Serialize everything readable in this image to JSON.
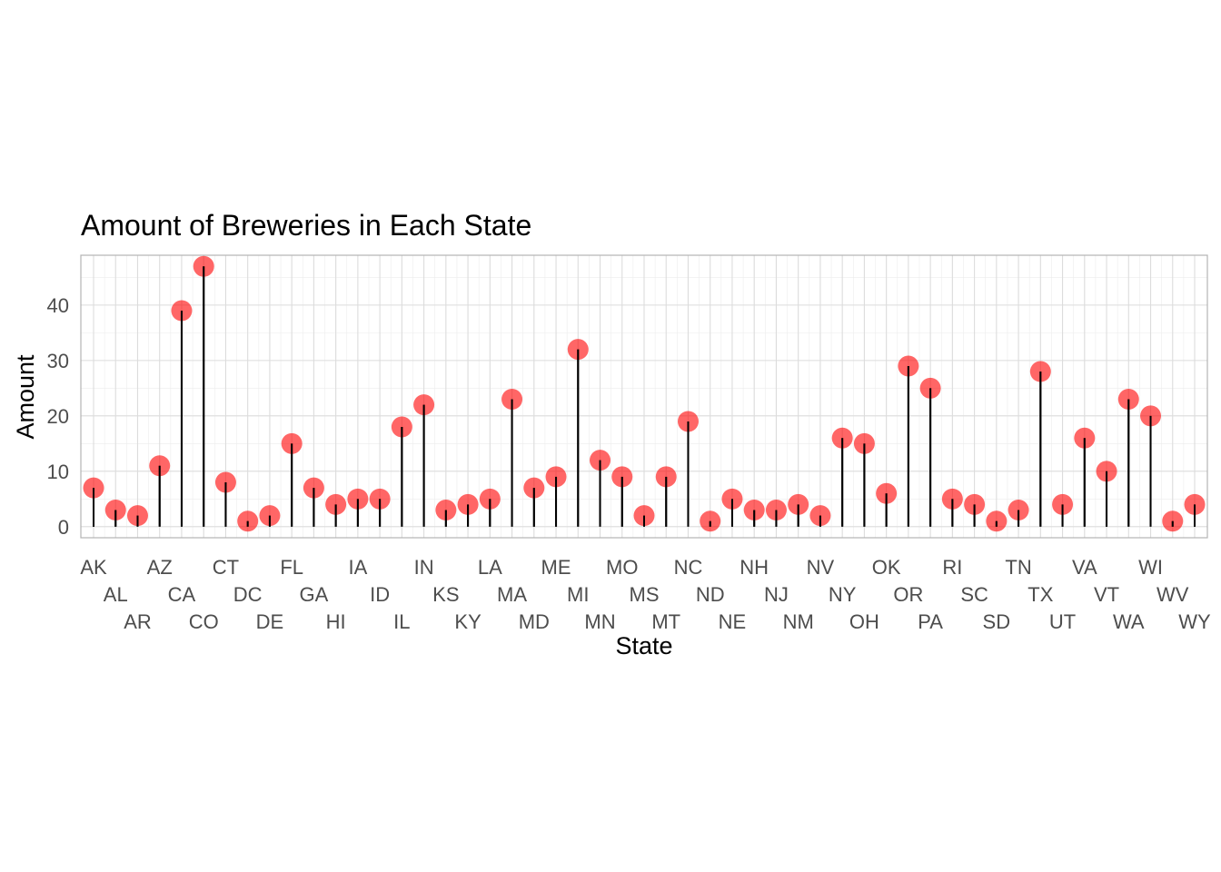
{
  "chart_data": {
    "type": "lollipop",
    "title": "Amount of Breweries in Each State",
    "xlabel": "State",
    "ylabel": "Amount",
    "ylim": [
      -2,
      49
    ],
    "yticks": [
      0,
      10,
      20,
      30,
      40
    ],
    "grid": true,
    "point_color": "#ff0000",
    "stem_color": "#000000",
    "categories": [
      "AK",
      "AL",
      "AR",
      "AZ",
      "CA",
      "CO",
      "CT",
      "DC",
      "DE",
      "FL",
      "GA",
      "HI",
      "IA",
      "ID",
      "IL",
      "IN",
      "KS",
      "KY",
      "LA",
      "MA",
      "MD",
      "ME",
      "MI",
      "MN",
      "MO",
      "MS",
      "MT",
      "NC",
      "ND",
      "NE",
      "NH",
      "NJ",
      "NM",
      "NV",
      "NY",
      "OH",
      "OK",
      "OR",
      "PA",
      "RI",
      "SC",
      "SD",
      "TN",
      "TX",
      "UT",
      "VA",
      "VT",
      "WA",
      "WI",
      "WV",
      "WY"
    ],
    "values": [
      7,
      3,
      2,
      11,
      39,
      47,
      8,
      1,
      2,
      15,
      7,
      4,
      5,
      5,
      18,
      22,
      3,
      4,
      5,
      23,
      7,
      9,
      32,
      12,
      9,
      2,
      9,
      19,
      1,
      5,
      3,
      3,
      4,
      2,
      16,
      15,
      6,
      29,
      25,
      5,
      4,
      1,
      3,
      28,
      4,
      16,
      10,
      23,
      20,
      1,
      4
    ]
  }
}
